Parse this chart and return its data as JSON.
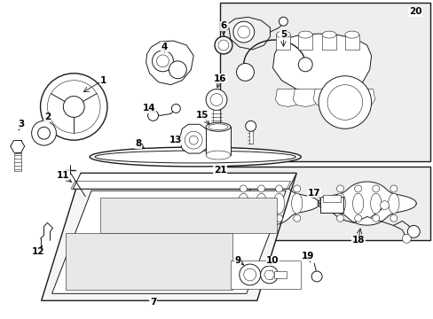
{
  "bg_color": "#ffffff",
  "line_color": "#1a1a1a",
  "box_fill": "#f0f0f0",
  "fig_width": 4.89,
  "fig_height": 3.6,
  "dpi": 100,
  "label_fontsize": 7.5,
  "arrow_lw": 0.6
}
